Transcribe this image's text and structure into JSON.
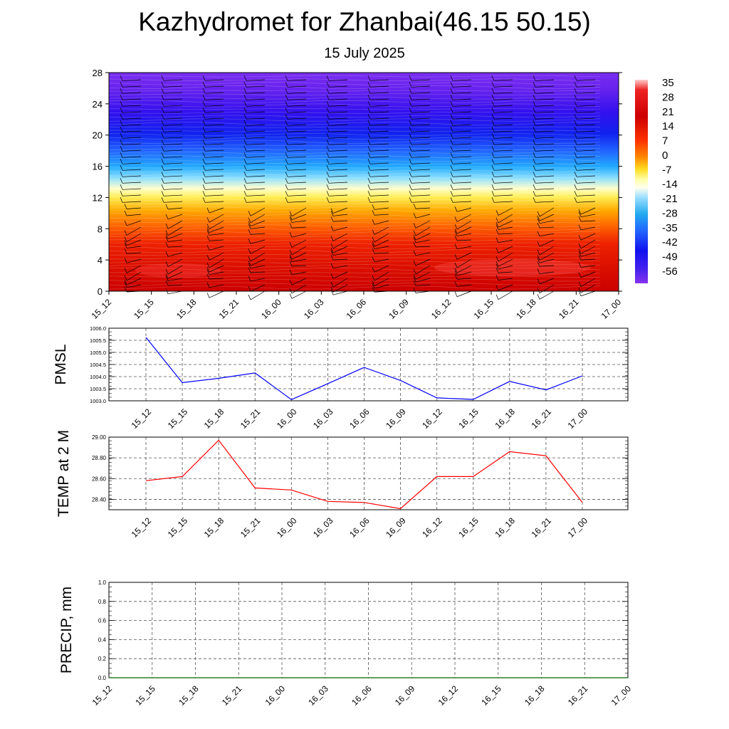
{
  "title": "Kazhydromet for Zhanbai(46.15 50.15)",
  "subtitle": "15 July 2025",
  "time_labels": [
    "15_12",
    "15_15",
    "15_18",
    "15_21",
    "16_00",
    "16_03",
    "16_06",
    "16_09",
    "16_12",
    "16_15",
    "16_18",
    "16_21",
    "17_00"
  ],
  "colors": {
    "pmsl_line": "#0000ff",
    "temp_line": "#ff0000",
    "precip_line": "#006400",
    "grid": "#555555"
  },
  "chart_data": [
    {
      "type": "heatmap",
      "name": "temperature-cross-section",
      "y_ticks": [
        0,
        4,
        8,
        12,
        16,
        20,
        24,
        28
      ],
      "ylim": [
        0,
        28
      ],
      "x": [
        "15_12",
        "15_15",
        "15_18",
        "15_21",
        "16_00",
        "16_03",
        "16_06",
        "16_09",
        "16_12",
        "16_15",
        "16_18",
        "16_21",
        "17_00"
      ],
      "colorbar_labels": [
        "35",
        "28",
        "21",
        "14",
        "7",
        "0",
        "-7",
        "-14",
        "-21",
        "-28",
        "-35",
        "-42",
        "-49",
        "-56"
      ],
      "colorbar_range": [
        -60,
        38
      ],
      "overlay": "wind barbs"
    },
    {
      "type": "line",
      "ylabel": "PMSL",
      "ylim": [
        1003.0,
        1006.0
      ],
      "y_ticks": [
        "1003.0",
        "1003.5",
        "1004.0",
        "1004.5",
        "1005.0",
        "1005.5",
        "1006.0"
      ],
      "x": [
        "15_12",
        "15_15",
        "15_18",
        "15_21",
        "16_00",
        "16_03",
        "16_06",
        "16_09",
        "16_12",
        "16_15",
        "16_18",
        "16_21",
        "17_00"
      ],
      "values": [
        1005.62,
        1003.75,
        1003.93,
        1004.15,
        1003.05,
        1003.71,
        1004.38,
        1003.84,
        1003.12,
        1003.06,
        1003.8,
        1003.45,
        1004.03
      ]
    },
    {
      "type": "line",
      "ylabel": "TEMP at 2 M",
      "ylim": [
        28.3,
        29.0
      ],
      "y_ticks": [
        "28.40",
        "28.60",
        "28.80",
        "29.00"
      ],
      "x": [
        "15_12",
        "15_15",
        "15_18",
        "15_21",
        "16_00",
        "16_03",
        "16_06",
        "16_09",
        "16_12",
        "16_15",
        "16_18",
        "16_21",
        "17_00"
      ],
      "values": [
        28.58,
        28.62,
        28.97,
        28.51,
        28.49,
        28.38,
        28.37,
        28.31,
        28.62,
        28.62,
        28.86,
        28.82,
        28.37
      ]
    },
    {
      "type": "line",
      "ylabel": "PRECIP, mm",
      "ylim": [
        0.0,
        1.0
      ],
      "y_ticks": [
        "0.0",
        "0.2",
        "0.4",
        "0.6",
        "0.8",
        "1.0"
      ],
      "x": [
        "15_12",
        "15_15",
        "15_18",
        "15_21",
        "16_00",
        "16_03",
        "16_06",
        "16_09",
        "16_12",
        "16_15",
        "16_18",
        "16_21",
        "17_00"
      ],
      "values": [
        0,
        0,
        0,
        0,
        0,
        0,
        0,
        0,
        0,
        0,
        0,
        0,
        0
      ]
    }
  ]
}
